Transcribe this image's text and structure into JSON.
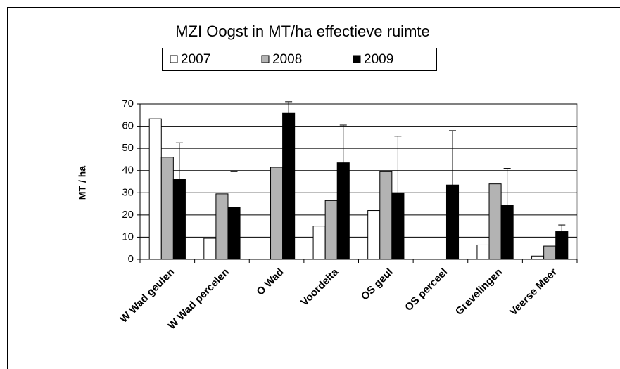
{
  "chart_data": {
    "type": "bar",
    "title": "MZI Oogst in MT/ha effectieve ruimte",
    "y_label": "MT / ha",
    "categories": [
      "W Wad geulen",
      "W Wad percelen",
      "O Wad",
      "Voordelta",
      "OS geul",
      "OS perceel",
      "Grevelingen",
      "Veerse Meer"
    ],
    "series": [
      {
        "name": "2007",
        "color": "#ffffff",
        "values": [
          63.3,
          9.5,
          null,
          15,
          22,
          null,
          6.5,
          1.5
        ]
      },
      {
        "name": "2008",
        "color": "#b3b3b3",
        "values": [
          46,
          29.5,
          41.5,
          26.5,
          39.5,
          null,
          34,
          6
        ]
      },
      {
        "name": "2009",
        "color": "#000000",
        "values": [
          36,
          23.5,
          65.8,
          43.5,
          30,
          33.5,
          24.5,
          12.5
        ],
        "errors": [
          16.5,
          16,
          5.2,
          17,
          25.5,
          24.5,
          16.5,
          3
        ]
      }
    ],
    "ylim": [
      0,
      70
    ],
    "yticks": [
      0,
      10,
      20,
      30,
      40,
      50,
      60,
      70
    ],
    "grid": true,
    "legend": "top"
  }
}
